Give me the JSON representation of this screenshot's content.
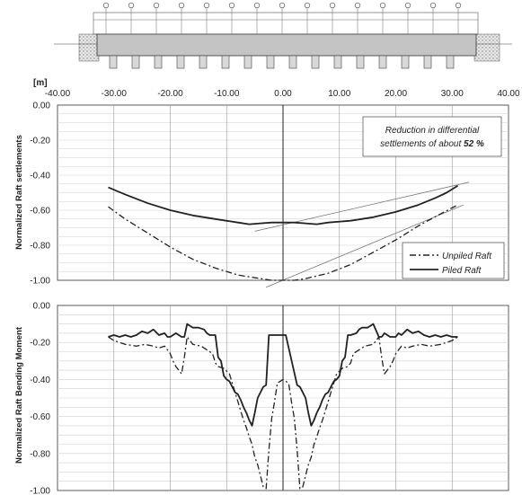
{
  "chart_data": [
    {
      "type": "line",
      "unit_label": "[m]",
      "ylabel": "Normalized Raft settlements",
      "xlim": [
        -40,
        40
      ],
      "ylim": [
        -1.0,
        0.0
      ],
      "x_tick_labels": [
        "-40.00",
        "-30.00",
        "-20.00",
        "-10.00",
        "0.00",
        "10.00",
        "20.00",
        "30.00",
        "40.00"
      ],
      "y_tick_labels": [
        "0.00",
        "-0.20",
        "-0.40",
        "-0.60",
        "-0.80",
        "-1.00"
      ],
      "annotation_line1": "Reduction in differential",
      "annotation_line2_prefix": "settlements of about ",
      "annotation_value": "52 %",
      "grid": true,
      "legend_position": "bottom-right",
      "series": [
        {
          "name": "Unpiled Raft",
          "style": "dash-dot",
          "color": "#222222",
          "x": [
            -31,
            -28,
            -24,
            -20,
            -16,
            -12,
            -8,
            -4,
            -2,
            0,
            2,
            4,
            8,
            12,
            16,
            20,
            24,
            28,
            31
          ],
          "y": [
            -0.58,
            -0.65,
            -0.73,
            -0.81,
            -0.88,
            -0.93,
            -0.97,
            -0.99,
            -1.0,
            -1.0,
            -1.0,
            -0.99,
            -0.96,
            -0.91,
            -0.84,
            -0.77,
            -0.69,
            -0.62,
            -0.57
          ]
        },
        {
          "name": "Piled Raft",
          "style": "solid",
          "color": "#222222",
          "x": [
            -31,
            -28,
            -24,
            -20,
            -16,
            -12,
            -8,
            -6,
            -4,
            -2,
            0,
            2,
            4,
            6,
            8,
            12,
            16,
            20,
            24,
            27,
            29,
            31
          ],
          "y": [
            -0.47,
            -0.51,
            -0.56,
            -0.6,
            -0.63,
            -0.65,
            -0.67,
            -0.68,
            -0.675,
            -0.67,
            -0.67,
            -0.67,
            -0.675,
            -0.68,
            -0.67,
            -0.66,
            -0.64,
            -0.61,
            -0.57,
            -0.53,
            -0.5,
            -0.46
          ]
        }
      ],
      "reference_lines": [
        {
          "x": [
            -5,
            33
          ],
          "y": [
            -0.72,
            -0.44
          ]
        },
        {
          "x": [
            -3,
            32
          ],
          "y": [
            -1.04,
            -0.57
          ]
        }
      ]
    },
    {
      "type": "line",
      "ylabel": "Normalized Raft Bending Moment",
      "xlim": [
        -40,
        40
      ],
      "ylim": [
        -1.0,
        0.0
      ],
      "y_tick_labels": [
        "0.00",
        "-0.20",
        "-0.40",
        "-0.60",
        "-0.80",
        "-1.00"
      ],
      "grid": true,
      "series": [
        {
          "name": "Unpiled Raft",
          "style": "dash-dot",
          "color": "#222222",
          "x": [
            -31,
            -30,
            -28,
            -26,
            -24.5,
            -23,
            -22,
            -21,
            -20,
            -19.5,
            -19,
            -18,
            -17.5,
            -17,
            -16,
            -14.5,
            -13.5,
            -12.5,
            -12,
            -11.5,
            -10.5,
            -9.5,
            -9,
            -8.5,
            -8,
            -7.5,
            -7,
            -6.5,
            -6,
            -5.5,
            -5,
            -4.5,
            -4,
            -3.5,
            -3,
            -2.5,
            -2,
            -1.5,
            -1,
            0,
            1,
            1.5,
            2,
            2.5,
            3,
            3.5,
            4,
            4.5,
            5,
            5.5,
            6,
            6.5,
            7,
            7.5,
            8,
            8.5,
            9,
            9.5,
            10.5,
            11.5,
            12,
            12.5,
            13.5,
            14.5,
            16,
            17,
            17.5,
            18,
            19,
            19.5,
            20,
            21,
            22,
            23,
            24.5,
            26,
            28,
            30,
            31
          ],
          "y": [
            -0.17,
            -0.19,
            -0.21,
            -0.22,
            -0.21,
            -0.22,
            -0.23,
            -0.22,
            -0.26,
            -0.3,
            -0.33,
            -0.37,
            -0.28,
            -0.17,
            -0.21,
            -0.22,
            -0.24,
            -0.26,
            -0.31,
            -0.33,
            -0.34,
            -0.37,
            -0.42,
            -0.47,
            -0.52,
            -0.57,
            -0.62,
            -0.66,
            -0.71,
            -0.75,
            -0.82,
            -0.86,
            -0.92,
            -0.98,
            -0.99,
            -0.78,
            -0.61,
            -0.52,
            -0.42,
            -0.4,
            -0.42,
            -0.52,
            -0.61,
            -0.78,
            -0.99,
            -0.98,
            -0.92,
            -0.86,
            -0.82,
            -0.75,
            -0.71,
            -0.66,
            -0.62,
            -0.57,
            -0.52,
            -0.47,
            -0.42,
            -0.37,
            -0.34,
            -0.33,
            -0.31,
            -0.26,
            -0.24,
            -0.22,
            -0.21,
            -0.17,
            -0.28,
            -0.37,
            -0.33,
            -0.3,
            -0.26,
            -0.22,
            -0.23,
            -0.22,
            -0.21,
            -0.22,
            -0.21,
            -0.19,
            -0.17
          ]
        },
        {
          "name": "Piled Raft",
          "style": "solid",
          "color": "#222222",
          "x": [
            -31,
            -30,
            -29,
            -28,
            -27,
            -26,
            -25,
            -24,
            -23,
            -22,
            -21,
            -20.5,
            -20,
            -19,
            -18,
            -17.5,
            -17,
            -16,
            -15,
            -14,
            -13.5,
            -13,
            -12,
            -11.5,
            -11,
            -10.5,
            -10,
            -9.5,
            -9,
            -8.5,
            -8,
            -7.5,
            -7,
            -6.5,
            -6,
            -5.5,
            -5,
            -4.5,
            -4,
            -3.5,
            -3,
            -2.5,
            0.5,
            0.5,
            2.5,
            3,
            3.5,
            4,
            4.5,
            5,
            5.5,
            6,
            6.5,
            7,
            7.5,
            8,
            8.5,
            9,
            9.5,
            10,
            10.5,
            11,
            11.5,
            12,
            13,
            13.5,
            14,
            15,
            16,
            17,
            17.5,
            18,
            19,
            20,
            20.5,
            21,
            22,
            23,
            24,
            25,
            26,
            27,
            28,
            29,
            30,
            31
          ],
          "y": [
            -0.17,
            -0.16,
            -0.17,
            -0.16,
            -0.17,
            -0.16,
            -0.14,
            -0.15,
            -0.13,
            -0.16,
            -0.15,
            -0.17,
            -0.17,
            -0.15,
            -0.17,
            -0.17,
            -0.1,
            -0.12,
            -0.12,
            -0.13,
            -0.15,
            -0.16,
            -0.16,
            -0.28,
            -0.3,
            -0.38,
            -0.4,
            -0.41,
            -0.44,
            -0.47,
            -0.48,
            -0.51,
            -0.55,
            -0.58,
            -0.62,
            -0.65,
            -0.58,
            -0.5,
            -0.47,
            -0.44,
            -0.43,
            -0.16,
            -0.16,
            -0.16,
            -0.43,
            -0.44,
            -0.47,
            -0.5,
            -0.58,
            -0.65,
            -0.62,
            -0.58,
            -0.55,
            -0.51,
            -0.48,
            -0.47,
            -0.44,
            -0.41,
            -0.4,
            -0.38,
            -0.3,
            -0.28,
            -0.16,
            -0.16,
            -0.15,
            -0.13,
            -0.12,
            -0.12,
            -0.1,
            -0.17,
            -0.17,
            -0.15,
            -0.17,
            -0.17,
            -0.15,
            -0.16,
            -0.13,
            -0.15,
            -0.14,
            -0.16,
            -0.17,
            -0.16,
            -0.17,
            -0.16,
            -0.17,
            -0.17
          ]
        }
      ]
    }
  ]
}
